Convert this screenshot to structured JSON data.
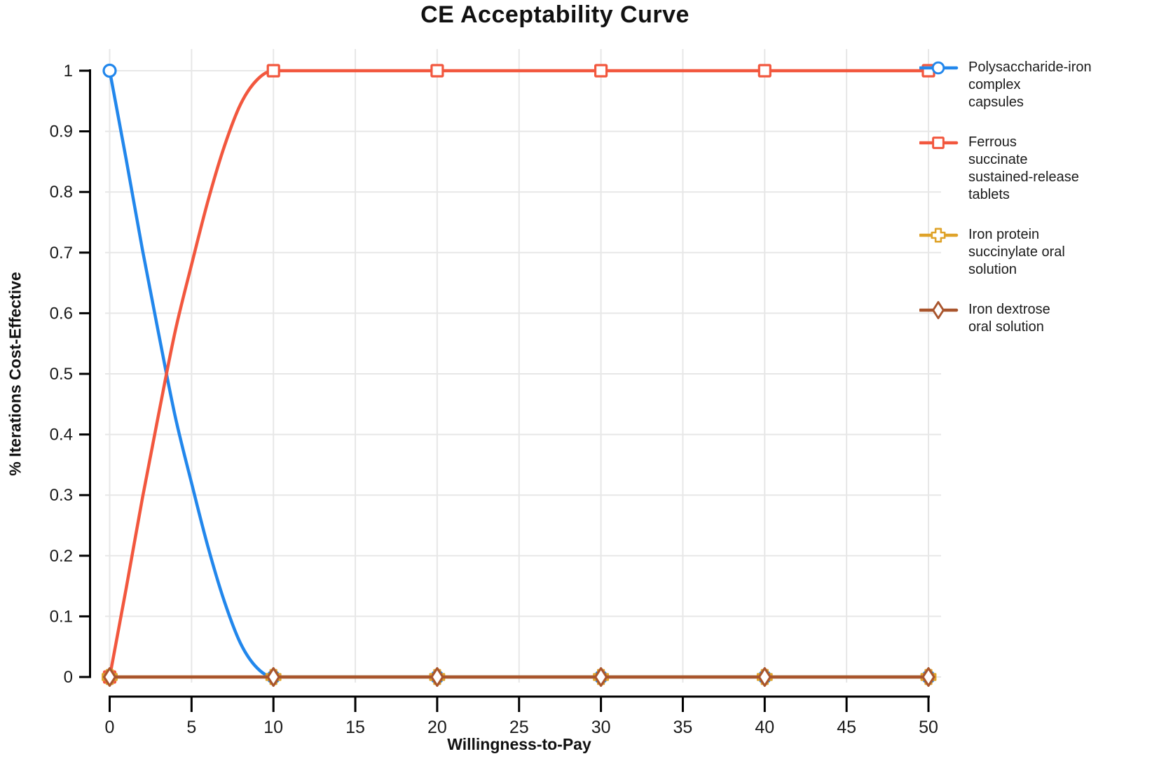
{
  "title": "CE Acceptability Curve",
  "chart_data": {
    "type": "line",
    "title": "CE Acceptability Curve",
    "xlabel": "Willingness-to-Pay",
    "ylabel": "% Iterations Cost-Effective",
    "xlim": [
      0,
      50
    ],
    "ylim": [
      0,
      1
    ],
    "xticks": [
      0,
      5,
      10,
      15,
      20,
      25,
      30,
      35,
      40,
      45,
      50
    ],
    "yticks": [
      0,
      0.1,
      0.2,
      0.3,
      0.4,
      0.5,
      0.6,
      0.7,
      0.8,
      0.9,
      1
    ],
    "ytick_labels": [
      "0",
      "0.1",
      "0.2",
      "0.3",
      "0.4",
      "0.5",
      "0.6",
      "0.7",
      "0.8",
      "0.9",
      "1"
    ],
    "grid": true,
    "legend_position": "right",
    "background": "#ffffff",
    "grid_color": "#e7e7e7",
    "axis_color": "#000000",
    "marker_x": [
      0,
      10,
      20,
      30,
      40,
      50
    ],
    "series": [
      {
        "name": "Polysaccharide-iron\ncomplex\ncapsules",
        "color": "#2287EC",
        "marker": "circle",
        "x": [
          0,
          1,
          2,
          3,
          4,
          5,
          6,
          7,
          8,
          9,
          10,
          20,
          30,
          40,
          50
        ],
        "y": [
          1,
          0.855,
          0.705,
          0.565,
          0.43,
          0.32,
          0.215,
          0.125,
          0.055,
          0.015,
          0,
          0,
          0,
          0,
          0
        ]
      },
      {
        "name": "Ferrous\nsuccinate\nsustained-release\ntablets",
        "color": "#F2573E",
        "marker": "square",
        "x": [
          0,
          1,
          2,
          3,
          4,
          5,
          6,
          7,
          8,
          9,
          10,
          20,
          30,
          40,
          50
        ],
        "y": [
          0,
          0.145,
          0.295,
          0.435,
          0.57,
          0.68,
          0.785,
          0.875,
          0.945,
          0.985,
          1,
          1,
          1,
          1,
          1
        ]
      },
      {
        "name": "Iron protein\nsuccinylate oral\nsolution",
        "color": "#DFA32A",
        "marker": "plus",
        "x": [
          0,
          10,
          20,
          30,
          40,
          50
        ],
        "y": [
          0,
          0,
          0,
          0,
          0,
          0
        ]
      },
      {
        "name": "Iron dextrose\noral solution",
        "color": "#A9552D",
        "marker": "diamond",
        "x": [
          0,
          10,
          20,
          30,
          40,
          50
        ],
        "y": [
          0,
          0,
          0,
          0,
          0,
          0
        ]
      }
    ]
  }
}
